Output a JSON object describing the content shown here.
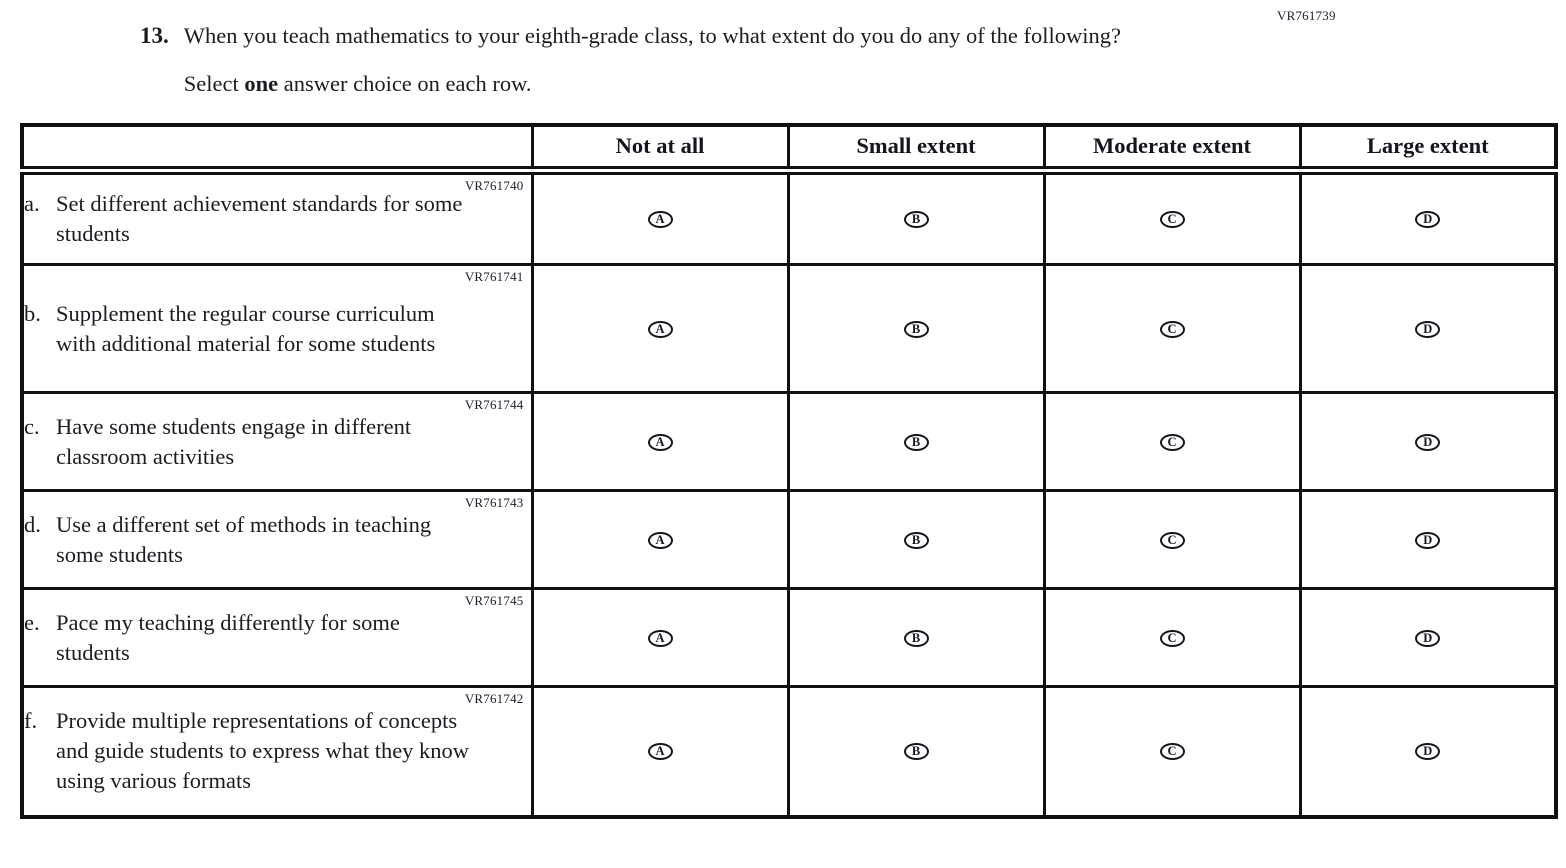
{
  "page": {
    "form_code": "VR761739"
  },
  "question": {
    "number": "13.",
    "text": "When you teach mathematics to your eighth-grade class, to what extent do you do any of the following?",
    "instruction_prefix": "Select ",
    "instruction_bold": "one",
    "instruction_suffix": " answer choice on each row."
  },
  "table": {
    "columns": [
      "Not at all",
      "Small extent",
      "Moderate extent",
      "Large extent"
    ],
    "option_letters": [
      "A",
      "B",
      "C",
      "D"
    ],
    "rows": [
      {
        "letter": "a.",
        "code": "VR761740",
        "text": "Set different achievement standards for some students"
      },
      {
        "letter": "b.",
        "code": "VR761741",
        "text": "Supplement the regular course curriculum with additional material for some students"
      },
      {
        "letter": "c.",
        "code": "VR761744",
        "text": "Have some students engage in different classroom activities"
      },
      {
        "letter": "d.",
        "code": "VR761743",
        "text": "Use a different set of methods in teaching some students"
      },
      {
        "letter": "e.",
        "code": "VR761745",
        "text": "Pace my teaching differently for some students"
      },
      {
        "letter": "f.",
        "code": "VR761742",
        "text": "Provide multiple representations of concepts and guide students to express what they know using various formats"
      }
    ]
  }
}
